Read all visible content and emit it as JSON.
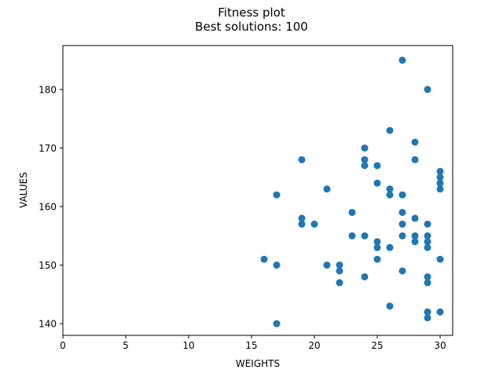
{
  "chart_data": {
    "type": "scatter",
    "title": "Fitness plot",
    "subtitle": "Best solutions: 100",
    "xlabel": "WEIGHTS",
    "ylabel": "VALUES",
    "xlim": [
      0,
      31
    ],
    "ylim": [
      138,
      187.5
    ],
    "xticks": [
      0,
      5,
      10,
      15,
      20,
      25,
      30
    ],
    "yticks": [
      140,
      150,
      160,
      170,
      180
    ],
    "grid": false,
    "marker_color": "#1f77b4",
    "points": [
      {
        "x": 16,
        "y": 151
      },
      {
        "x": 17,
        "y": 162
      },
      {
        "x": 17,
        "y": 150
      },
      {
        "x": 17,
        "y": 140
      },
      {
        "x": 19,
        "y": 168
      },
      {
        "x": 19,
        "y": 158
      },
      {
        "x": 19,
        "y": 157
      },
      {
        "x": 20,
        "y": 157
      },
      {
        "x": 21,
        "y": 163
      },
      {
        "x": 21,
        "y": 150
      },
      {
        "x": 22,
        "y": 150
      },
      {
        "x": 22,
        "y": 149
      },
      {
        "x": 22,
        "y": 147
      },
      {
        "x": 23,
        "y": 159
      },
      {
        "x": 23,
        "y": 155
      },
      {
        "x": 24,
        "y": 170
      },
      {
        "x": 24,
        "y": 168
      },
      {
        "x": 24,
        "y": 167
      },
      {
        "x": 24,
        "y": 155
      },
      {
        "x": 24,
        "y": 148
      },
      {
        "x": 25,
        "y": 167
      },
      {
        "x": 25,
        "y": 164
      },
      {
        "x": 25,
        "y": 154
      },
      {
        "x": 25,
        "y": 153
      },
      {
        "x": 25,
        "y": 151
      },
      {
        "x": 26,
        "y": 173
      },
      {
        "x": 26,
        "y": 163
      },
      {
        "x": 26,
        "y": 162
      },
      {
        "x": 26,
        "y": 153
      },
      {
        "x": 26,
        "y": 143
      },
      {
        "x": 27,
        "y": 185
      },
      {
        "x": 27,
        "y": 162
      },
      {
        "x": 27,
        "y": 159
      },
      {
        "x": 27,
        "y": 157
      },
      {
        "x": 27,
        "y": 155
      },
      {
        "x": 27,
        "y": 149
      },
      {
        "x": 28,
        "y": 171
      },
      {
        "x": 28,
        "y": 168
      },
      {
        "x": 28,
        "y": 158
      },
      {
        "x": 28,
        "y": 155
      },
      {
        "x": 28,
        "y": 154
      },
      {
        "x": 29,
        "y": 180
      },
      {
        "x": 29,
        "y": 157
      },
      {
        "x": 29,
        "y": 155
      },
      {
        "x": 29,
        "y": 154
      },
      {
        "x": 29,
        "y": 153
      },
      {
        "x": 29,
        "y": 148
      },
      {
        "x": 29,
        "y": 147
      },
      {
        "x": 29,
        "y": 142
      },
      {
        "x": 29,
        "y": 141
      },
      {
        "x": 30,
        "y": 166
      },
      {
        "x": 30,
        "y": 165
      },
      {
        "x": 30,
        "y": 164
      },
      {
        "x": 30,
        "y": 163
      },
      {
        "x": 30,
        "y": 151
      },
      {
        "x": 30,
        "y": 142
      }
    ]
  }
}
